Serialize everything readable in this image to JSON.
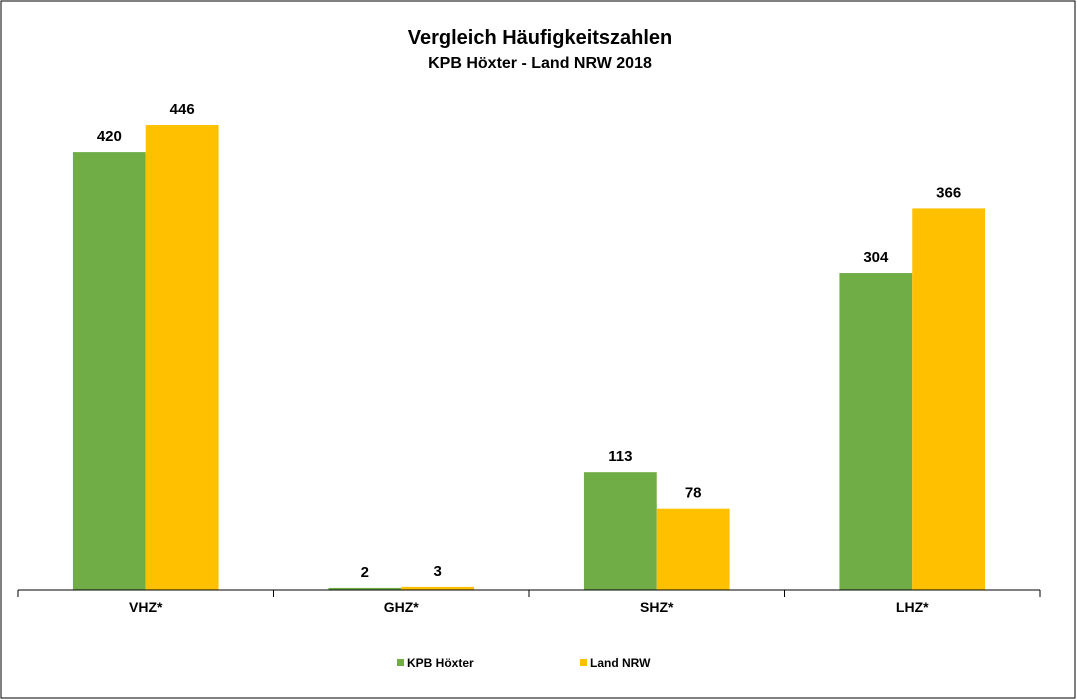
{
  "chart_data": {
    "type": "bar",
    "title": "Vergleich Häufigkeitszahlen",
    "subtitle": "KPB Höxter - Land NRW 2018",
    "categories": [
      "VHZ*",
      "GHZ*",
      "SHZ*",
      "LHZ*"
    ],
    "series": [
      {
        "name": "KPB Höxter",
        "color": "#70ad47",
        "values": [
          420,
          2,
          113,
          304
        ]
      },
      {
        "name": "Land NRW",
        "color": "#ffc000",
        "values": [
          446,
          3,
          78,
          366
        ]
      }
    ],
    "legend": "bottom"
  }
}
